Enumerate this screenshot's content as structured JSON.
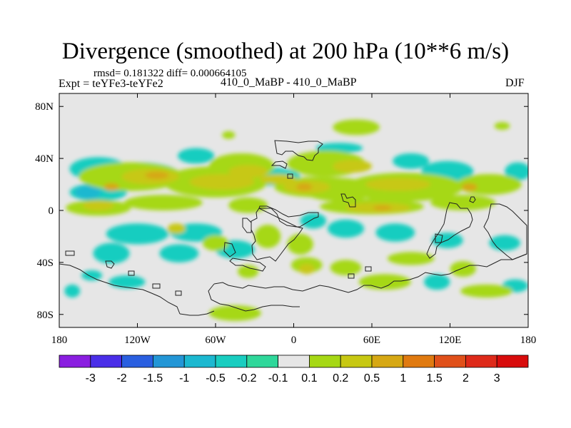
{
  "title": "Divergence (smoothed) at 200 hPa (10**6 m/s)",
  "stats": "rmsd= 0.181322 diff= 0.000664105",
  "expt": "Expt = teYFe3-teYFe2",
  "center_label": "410_0_MaBP - 410_0_MaBP",
  "season": "DJF",
  "colors": {
    "background_field": "#e6e6e6",
    "frame": "#000000",
    "coast": "#222222"
  },
  "chart_data": {
    "type": "heatmap",
    "title": "Divergence (smoothed) at 200 hPa (10**6 m/s)",
    "xlim": [
      -180,
      180
    ],
    "ylim": [
      -90,
      90
    ],
    "x_ticks": [
      {
        "value": -180,
        "label": "180"
      },
      {
        "value": -120,
        "label": "120W"
      },
      {
        "value": -60,
        "label": "60W"
      },
      {
        "value": 0,
        "label": "0"
      },
      {
        "value": 60,
        "label": "60E"
      },
      {
        "value": 120,
        "label": "120E"
      },
      {
        "value": 180,
        "label": "180"
      }
    ],
    "y_ticks": [
      {
        "value": 80,
        "label": "80N"
      },
      {
        "value": 40,
        "label": "40N"
      },
      {
        "value": 0,
        "label": "0"
      },
      {
        "value": -40,
        "label": "40S"
      },
      {
        "value": -80,
        "label": "80S"
      }
    ],
    "colorbar": {
      "levels": [
        "-3",
        "-2",
        "-1.5",
        "-1",
        "-0.5",
        "-0.2",
        "-0.1",
        "0.1",
        "0.2",
        "0.5",
        "1",
        "1.5",
        "2",
        "3"
      ],
      "colors": [
        "#8a1ee0",
        "#4a2ee8",
        "#2a5fe0",
        "#2396d6",
        "#1cb8d0",
        "#19cdc0",
        "#2fd79a",
        "#e6e6e6",
        "#a6d815",
        "#c7c812",
        "#d6a814",
        "#e07a10",
        "#e0501a",
        "#de2a1a",
        "#d80c0c"
      ]
    },
    "blobs": [
      {
        "lon": -150,
        "lat": 32,
        "rx": 22,
        "ry": 9,
        "bin": 5
      },
      {
        "lon": -150,
        "lat": 14,
        "rx": 22,
        "ry": 7,
        "bin": 5
      },
      {
        "lon": -158,
        "lat": 14,
        "rx": 10,
        "ry": 5,
        "bin": 4
      },
      {
        "lon": -118,
        "lat": 28,
        "rx": 30,
        "ry": 9,
        "bin": 5
      },
      {
        "lon": -75,
        "lat": 42,
        "rx": 14,
        "ry": 6,
        "bin": 5
      },
      {
        "lon": -20,
        "lat": 26,
        "rx": 25,
        "ry": 7,
        "bin": 5
      },
      {
        "lon": 35,
        "lat": 48,
        "rx": 18,
        "ry": 4,
        "bin": 5
      },
      {
        "lon": 90,
        "lat": 38,
        "rx": 14,
        "ry": 6,
        "bin": 5
      },
      {
        "lon": 118,
        "lat": 30,
        "rx": 20,
        "ry": 8,
        "bin": 5
      },
      {
        "lon": 172,
        "lat": 30,
        "rx": 10,
        "ry": 7,
        "bin": 5
      },
      {
        "lon": -120,
        "lat": -18,
        "rx": 24,
        "ry": 8,
        "bin": 5
      },
      {
        "lon": -75,
        "lat": -17,
        "rx": 20,
        "ry": 7,
        "bin": 5
      },
      {
        "lon": -45,
        "lat": -30,
        "rx": 15,
        "ry": 7,
        "bin": 5
      },
      {
        "lon": 15,
        "lat": -8,
        "rx": 10,
        "ry": 6,
        "bin": 5
      },
      {
        "lon": 40,
        "lat": -14,
        "rx": 14,
        "ry": 7,
        "bin": 5
      },
      {
        "lon": 78,
        "lat": -17,
        "rx": 15,
        "ry": 7,
        "bin": 5
      },
      {
        "lon": 118,
        "lat": -23,
        "rx": 12,
        "ry": 6,
        "bin": 5
      },
      {
        "lon": 162,
        "lat": -25,
        "rx": 12,
        "ry": 6,
        "bin": 5
      },
      {
        "lon": -140,
        "lat": -33,
        "rx": 14,
        "ry": 8,
        "bin": 5
      },
      {
        "lon": -88,
        "lat": -33,
        "rx": 15,
        "ry": 7,
        "bin": 5
      },
      {
        "lon": -128,
        "lat": -55,
        "rx": 14,
        "ry": 5,
        "bin": 5
      },
      {
        "lon": -170,
        "lat": -62,
        "rx": 6,
        "ry": 5,
        "bin": 5
      },
      {
        "lon": -155,
        "lat": -50,
        "rx": 8,
        "ry": 4,
        "bin": 5
      },
      {
        "lon": 110,
        "lat": -55,
        "rx": 10,
        "ry": 6,
        "bin": 5
      },
      {
        "lon": 170,
        "lat": -58,
        "rx": 10,
        "ry": 5,
        "bin": 5
      },
      {
        "lon": -125,
        "lat": 26,
        "rx": 40,
        "ry": 11,
        "bin": 8
      },
      {
        "lon": -60,
        "lat": 22,
        "rx": 40,
        "ry": 12,
        "bin": 8
      },
      {
        "lon": -40,
        "lat": 34,
        "rx": 25,
        "ry": 10,
        "bin": 8
      },
      {
        "lon": 20,
        "lat": 18,
        "rx": 35,
        "ry": 8,
        "bin": 8
      },
      {
        "lon": 35,
        "lat": 16,
        "rx": 28,
        "ry": 9,
        "bin": 8
      },
      {
        "lon": 25,
        "lat": 36,
        "rx": 30,
        "ry": 10,
        "bin": 8
      },
      {
        "lon": 85,
        "lat": 18,
        "rx": 45,
        "ry": 11,
        "bin": 8
      },
      {
        "lon": 150,
        "lat": 20,
        "rx": 25,
        "ry": 8,
        "bin": 8
      },
      {
        "lon": -150,
        "lat": 2,
        "rx": 25,
        "ry": 6,
        "bin": 8
      },
      {
        "lon": -100,
        "lat": 6,
        "rx": 30,
        "ry": 6,
        "bin": 8
      },
      {
        "lon": -35,
        "lat": 4,
        "rx": 15,
        "ry": 6,
        "bin": 8
      },
      {
        "lon": 60,
        "lat": 3,
        "rx": 40,
        "ry": 6,
        "bin": 8
      },
      {
        "lon": 130,
        "lat": 6,
        "rx": 25,
        "ry": 6,
        "bin": 8
      },
      {
        "lon": -60,
        "lat": -25,
        "rx": 10,
        "ry": 6,
        "bin": 8
      },
      {
        "lon": -20,
        "lat": -20,
        "rx": 10,
        "ry": 9,
        "bin": 8
      },
      {
        "lon": 5,
        "lat": -26,
        "rx": 10,
        "ry": 8,
        "bin": 8
      },
      {
        "lon": 90,
        "lat": -37,
        "rx": 18,
        "ry": 5,
        "bin": 8
      },
      {
        "lon": -35,
        "lat": -47,
        "rx": 8,
        "ry": 5,
        "bin": 8
      },
      {
        "lon": 10,
        "lat": -42,
        "rx": 12,
        "ry": 6,
        "bin": 8
      },
      {
        "lon": 40,
        "lat": -44,
        "rx": 12,
        "ry": 6,
        "bin": 8
      },
      {
        "lon": 130,
        "lat": -45,
        "rx": 10,
        "ry": 6,
        "bin": 8
      },
      {
        "lon": 70,
        "lat": -55,
        "rx": 20,
        "ry": 6,
        "bin": 8
      },
      {
        "lon": 148,
        "lat": -62,
        "rx": 20,
        "ry": 5,
        "bin": 8
      },
      {
        "lon": -45,
        "lat": -79,
        "rx": 20,
        "ry": 6,
        "bin": 8
      },
      {
        "lon": 48,
        "lat": 64,
        "rx": 18,
        "ry": 6,
        "bin": 8
      },
      {
        "lon": 160,
        "lat": 65,
        "rx": 6,
        "ry": 3,
        "bin": 8
      },
      {
        "lon": -50,
        "lat": 58,
        "rx": 5,
        "ry": 3,
        "bin": 8
      },
      {
        "lon": -110,
        "lat": 26,
        "rx": 22,
        "ry": 6,
        "bin": 9
      },
      {
        "lon": -55,
        "lat": 22,
        "rx": 25,
        "ry": 6,
        "bin": 9
      },
      {
        "lon": 10,
        "lat": 18,
        "rx": 18,
        "ry": 5,
        "bin": 9
      },
      {
        "lon": 45,
        "lat": 34,
        "rx": 15,
        "ry": 5,
        "bin": 9
      },
      {
        "lon": 80,
        "lat": 20,
        "rx": 25,
        "ry": 5,
        "bin": 9
      },
      {
        "lon": -150,
        "lat": 4,
        "rx": 12,
        "ry": 4,
        "bin": 9
      },
      {
        "lon": 65,
        "lat": 2,
        "rx": 25,
        "ry": 4,
        "bin": 9
      },
      {
        "lon": -35,
        "lat": 30,
        "rx": 15,
        "ry": 5,
        "bin": 9
      },
      {
        "lon": -12,
        "lat": 24,
        "rx": 14,
        "ry": 4,
        "bin": 9
      },
      {
        "lon": -90,
        "lat": -14,
        "rx": 7,
        "ry": 4,
        "bin": 9
      },
      {
        "lon": 10,
        "lat": -45,
        "rx": 6,
        "ry": 4,
        "bin": 9
      },
      {
        "lon": -105,
        "lat": 27,
        "rx": 9,
        "ry": 3,
        "bin": 10
      },
      {
        "lon": -140,
        "lat": 18,
        "rx": 6,
        "ry": 3,
        "bin": 10
      },
      {
        "lon": 8,
        "lat": 18,
        "rx": 6,
        "ry": 3,
        "bin": 10
      },
      {
        "lon": 68,
        "lat": 2,
        "rx": 7,
        "ry": 2,
        "bin": 10
      },
      {
        "lon": 135,
        "lat": 18,
        "rx": 6,
        "ry": 3,
        "bin": 10
      }
    ]
  },
  "coastline_paths": [
    "M 385,197 L 388,215 L 395,217 L 400,212 L 410,212 L 418,218 L 426,220 L 430,224 L 438,225 L 441,218 L 446,214 L 446,208 L 452,202 L 445,198 L 432,198 L 418,200 L 402,198 Z",
    "M 381,232 L 392,232 L 400,236 L 402,230 L 396,226 L 386,227 Z",
    "M 403,244 L 410,244 L 410,250 L 403,250 Z",
    "M 478,272 L 483,272 L 486,278 L 494,276 L 498,280 L 498,290 L 490,290 L 488,284 L 481,282 Z",
    "M 363,292 L 380,292 L 388,300 L 392,310 L 402,316 L 415,318 L 420,318 L 430,312 L 440,306 L 446,304 L 446,298 L 432,298 L 420,302 L 404,304 L 396,300 L 386,294 L 374,289 L 364,289 Z",
    "M 363,292 L 359,298 L 360,306 L 352,310 L 352,322 L 356,330 L 358,338 L 353,344 L 354,356 L 360,364 L 368,362 L 378,360 L 386,366 L 392,358 L 398,350 L 404,342 L 412,336 L 420,326 L 424,320 L 416,318 Z",
    "M 340,306 L 346,306 L 352,312 L 352,326 L 346,326 L 340,318 Z",
    "M 630,284 L 640,286 L 645,292 L 655,292 L 660,300 L 662,308 L 658,318 L 646,324 L 636,330 L 628,336 L 618,340 L 612,346 L 610,356 L 602,362 L 598,356 L 602,346 L 608,336 L 615,326 L 622,314 L 624,304 L 626,294 Z",
    "M 610,328 L 620,330 L 618,340 L 610,340 Z",
    "M 688,286 L 700,286 L 710,290 L 718,296 L 726,304 L 738,316 L 738,356 L 728,360 L 718,364 L 710,358 L 696,346 L 690,338 L 684,326 L 678,318 L 684,306 Z",
    "M 663,284 L 666,280 L 664,276 L 660,276 L 658,282 Z",
    "M 315,340 L 325,342 L 330,354 L 322,360 L 314,352 Z",
    "M 322,366 L 330,372 L 340,372 L 350,376 L 360,378 L 368,380 L 372,374 L 364,368 L 352,366 L 338,364 L 326,362 Z",
    "M 300,398 L 312,396 L 320,400 L 330,402 L 340,404 L 348,400 L 360,402 L 372,404 L 384,402 L 398,402 L 410,406 L 424,408 L 436,404 L 448,400 L 460,402 L 474,406 L 488,410 L 500,406 L 510,400 L 520,400 L 534,404 L 544,400 L 552,394 L 562,394 L 574,392 L 586,388 L 596,382 L 606,384 L 618,386 L 630,384 L 638,380 L 648,376 L 658,372 L 670,372 L 682,374 L 690,370 L 702,364 L 718,364 L 728,360 L 738,356",
    "M 300,398 L 292,408 L 296,420 L 308,426 L 320,428 L 332,432 L 344,436 L 356,434 L 368,430 L 380,428 L 396,428 L 410,430 L 420,430",
    "M 83,370 L 98,372 L 112,378 L 124,386 L 136,392 L 148,396 L 160,400 L 172,402 L 186,404 L 200,406 L 210,410 L 224,416 L 236,424 L 248,430 L 252,440",
    "M 252,440 L 266,442 L 278,442 L 290,440 L 300,436",
    "M 148,366 L 156,366 L 160,370 L 156,376 L 150,374 Z",
    "M 92,352 L 104,352 L 104,358 L 92,358 Z",
    "M 214,398 L 224,398 L 224,404 L 214,404 Z",
    "M 246,408 L 254,408 L 254,414 L 246,414 Z",
    "M 488,384 L 496,384 L 496,390 L 488,390 Z",
    "M 512,374 L 520,374 L 520,380 L 512,380 Z",
    "M 180,380 L 188,380 L 188,386 L 180,386 Z"
  ]
}
